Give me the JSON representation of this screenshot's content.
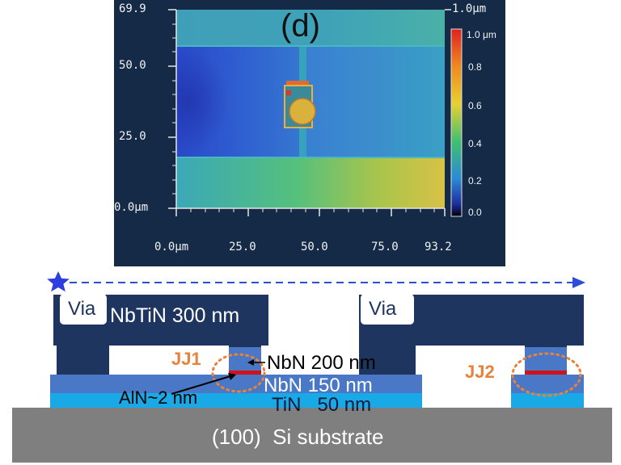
{
  "afm": {
    "panel_label": "(d)",
    "y_ticks": [
      "69.9",
      "50.0",
      "25.0",
      "0.0μm"
    ],
    "x_ticks": [
      "0.0μm",
      "25.0",
      "50.0",
      "75.0",
      "93.2"
    ],
    "z_top_label": "1.0μm",
    "colorbar_ticks": [
      "1.0 μm",
      "0.8",
      "0.6",
      "0.4",
      "0.2",
      "0.0"
    ]
  },
  "cross_section": {
    "via_left": "Via",
    "via_right": "Via",
    "nbtin": "NbTiN 300 nm",
    "jj1": "JJ1",
    "jj2": "JJ2",
    "nbn200": "NbN 200 nm",
    "nbn150": "NbN 150 nm",
    "aln": "AlN~2 nm",
    "tin": "TiN   50 nm",
    "substrate": "(100)  Si substrate"
  },
  "colors": {
    "afm_background": "#142a46",
    "nbtin": "#1e3560",
    "nbn": "#4a78c6",
    "tin": "#19a9e6",
    "substrate": "#7f7f7f",
    "barrier": "#d0121a",
    "jj_marker": "#e8823a",
    "scan_line": "#2d4fd8"
  }
}
